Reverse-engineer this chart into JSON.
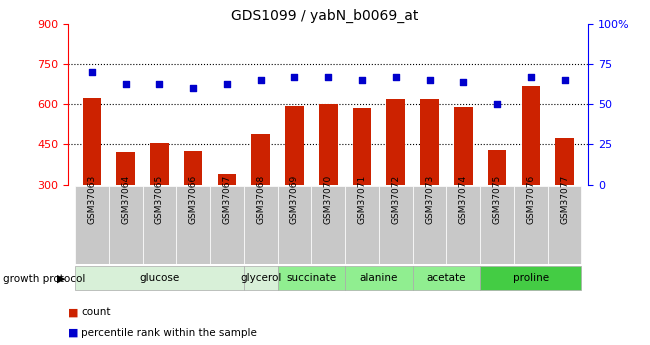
{
  "title": "GDS1099 / yabN_b0069_at",
  "samples": [
    "GSM37063",
    "GSM37064",
    "GSM37065",
    "GSM37066",
    "GSM37067",
    "GSM37068",
    "GSM37069",
    "GSM37070",
    "GSM37071",
    "GSM37072",
    "GSM37073",
    "GSM37074",
    "GSM37075",
    "GSM37076",
    "GSM37077"
  ],
  "bar_values": [
    625,
    420,
    455,
    425,
    340,
    490,
    595,
    600,
    585,
    620,
    620,
    590,
    430,
    670,
    475
  ],
  "dot_values": [
    70,
    63,
    63,
    60,
    63,
    65,
    67,
    67,
    65,
    67,
    65,
    64,
    50,
    67,
    65
  ],
  "ylim_left": [
    300,
    900
  ],
  "ylim_right": [
    0,
    100
  ],
  "yticks_left": [
    300,
    450,
    600,
    750,
    900
  ],
  "yticks_right": [
    0,
    25,
    50,
    75,
    100
  ],
  "bar_color": "#cc2200",
  "dot_color": "#0000cc",
  "bar_bottom": 300,
  "group_defs": [
    {
      "label": "glucose",
      "indices": [
        0,
        1,
        2,
        3,
        4
      ],
      "color": "#d8f0d8"
    },
    {
      "label": "glycerol",
      "indices": [
        5
      ],
      "color": "#d8f0d8"
    },
    {
      "label": "succinate",
      "indices": [
        6,
        7
      ],
      "color": "#90ee90"
    },
    {
      "label": "alanine",
      "indices": [
        8,
        9
      ],
      "color": "#90ee90"
    },
    {
      "label": "acetate",
      "indices": [
        10,
        11
      ],
      "color": "#90ee90"
    },
    {
      "label": "proline",
      "indices": [
        12,
        13,
        14
      ],
      "color": "#44cc44"
    }
  ],
  "legend_count_color": "#cc2200",
  "legend_pct_color": "#0000cc",
  "growth_protocol_label": "growth protocol",
  "tick_bg_color": "#c8c8c8"
}
